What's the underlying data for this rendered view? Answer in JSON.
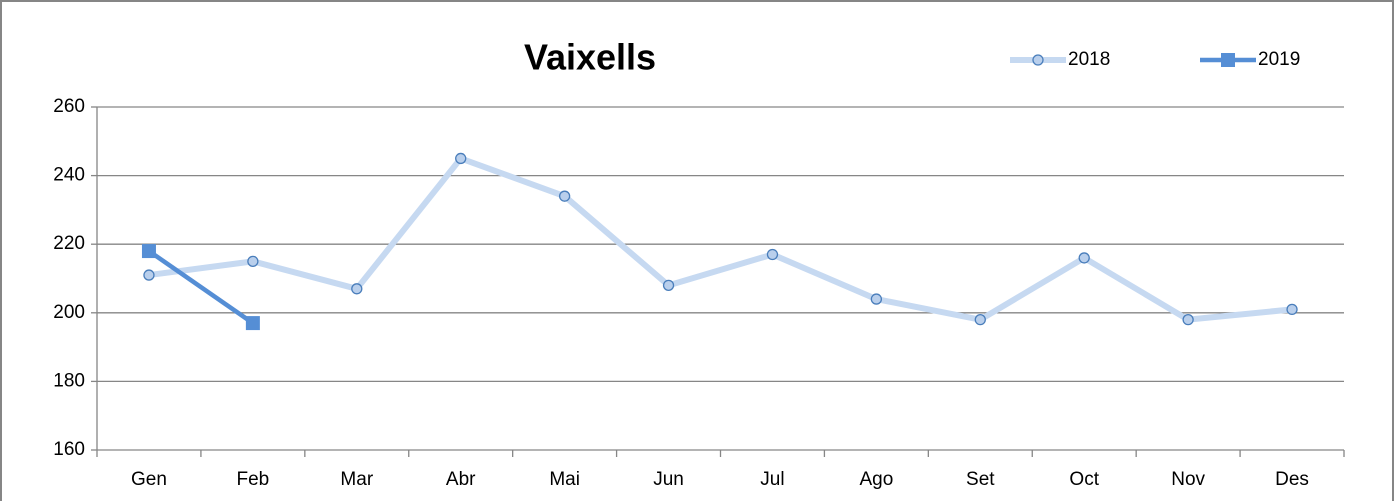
{
  "chart_data": {
    "type": "line",
    "title": "Vaixells",
    "categories": [
      "Gen",
      "Feb",
      "Mar",
      "Abr",
      "Mai",
      "Jun",
      "Jul",
      "Ago",
      "Set",
      "Oct",
      "Nov",
      "Des"
    ],
    "series": [
      {
        "name": "2018",
        "color": "#c6d9f1",
        "marker": "circle",
        "values": [
          211,
          215,
          207,
          245,
          234,
          208,
          217,
          204,
          198,
          216,
          198,
          201
        ]
      },
      {
        "name": "2019",
        "color": "#558ed5",
        "marker": "square",
        "values": [
          218,
          197,
          null,
          null,
          null,
          null,
          null,
          null,
          null,
          null,
          null,
          null
        ]
      }
    ],
    "ylim": [
      160,
      260
    ],
    "yticks": [
      160,
      180,
      200,
      220,
      240,
      260
    ],
    "grid": true,
    "legend": "top-right"
  }
}
